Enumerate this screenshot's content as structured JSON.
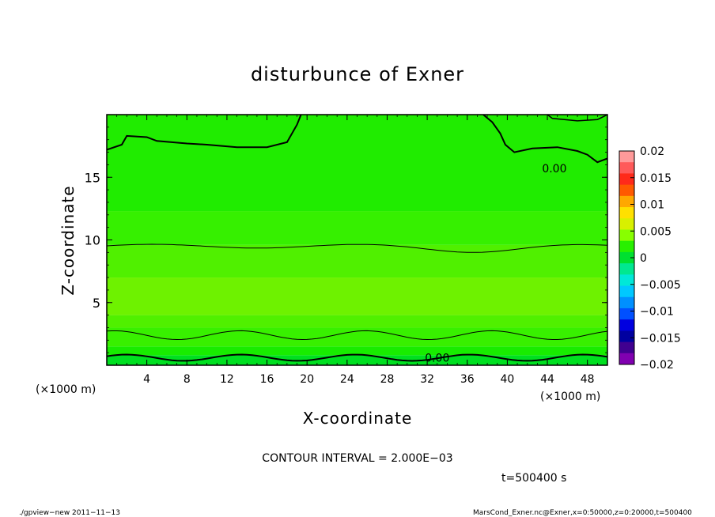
{
  "chart_data": {
    "type": "heatmap",
    "title": "disturbunce of Exner",
    "xlabel": "X-coordinate",
    "ylabel": "Z-coordinate",
    "x_unit": "(×1000 m)",
    "z_unit": "(×1000 m)",
    "xlim": [
      0,
      50
    ],
    "ylim": [
      0,
      20
    ],
    "x_ticks": [
      "4",
      "8",
      "12",
      "16",
      "20",
      "24",
      "28",
      "32",
      "36",
      "40",
      "44",
      "48"
    ],
    "y_ticks": [
      "5",
      "10",
      "15"
    ],
    "colorbar": {
      "labels": [
        "0.02",
        "0.015",
        "0.01",
        "0.005",
        "0",
        "−0.005",
        "−0.01",
        "−0.015",
        "−0.02"
      ],
      "values": [
        0.02,
        0.015,
        0.01,
        0.005,
        0,
        -0.005,
        -0.01,
        -0.015,
        -0.02
      ],
      "colors": [
        "#ff9a9a",
        "#ff5a5a",
        "#ff2a1a",
        "#ff5a00",
        "#ffa800",
        "#ffe000",
        "#d8f000",
        "#88ff00",
        "#28f000",
        "#00e030",
        "#00e890",
        "#00e8d8",
        "#00c8ff",
        "#0090ff",
        "#0050ff",
        "#0000e0",
        "#0000a0",
        "#400090",
        "#8000b0"
      ]
    },
    "bands": [
      {
        "z": [
          0,
          0.8
        ],
        "color": "#00e020"
      },
      {
        "z": [
          0.8,
          1.5
        ],
        "color": "#18ec00"
      },
      {
        "z": [
          1.5,
          3.0
        ],
        "color": "#38f000"
      },
      {
        "z": [
          3.0,
          4.0
        ],
        "color": "#50f000"
      },
      {
        "z": [
          4.0,
          7.0
        ],
        "color": "#6ef200"
      },
      {
        "z": [
          7.0,
          9.6
        ],
        "color": "#50f000"
      },
      {
        "z": [
          9.6,
          12.3
        ],
        "color": "#36f000"
      },
      {
        "z": [
          12.3,
          20.0
        ],
        "color": "#20ec00"
      }
    ],
    "contour_labels": [
      "0.00",
      "0.00"
    ],
    "contour_interval": "CONTOUR INTERVAL = 2.000E−03",
    "time_label": "t=500400 s"
  },
  "footer": {
    "left": "./gpview−new   2011−11−13",
    "right": "MarsCond_Exner.nc@Exner,x=0:50000,z=0:20000,t=500400"
  }
}
